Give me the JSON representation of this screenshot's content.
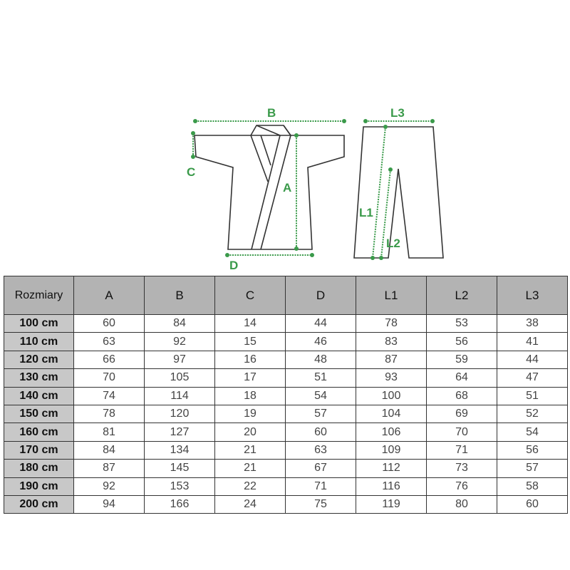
{
  "diagram": {
    "accent_color": "#3a9a4a",
    "labels": {
      "A": "A",
      "B": "B",
      "C": "C",
      "D": "D",
      "L1": "L1",
      "L2": "L2",
      "L3": "L3"
    }
  },
  "table": {
    "headers": [
      "Rozmiary",
      "A",
      "B",
      "C",
      "D",
      "L1",
      "L2",
      "L3"
    ],
    "rows": [
      [
        "100 cm",
        "60",
        "84",
        "14",
        "44",
        "78",
        "53",
        "38"
      ],
      [
        "110 cm",
        "63",
        "92",
        "15",
        "46",
        "83",
        "56",
        "41"
      ],
      [
        "120 cm",
        "66",
        "97",
        "16",
        "48",
        "87",
        "59",
        "44"
      ],
      [
        "130 cm",
        "70",
        "105",
        "17",
        "51",
        "93",
        "64",
        "47"
      ],
      [
        "140 cm",
        "74",
        "114",
        "18",
        "54",
        "100",
        "68",
        "51"
      ],
      [
        "150 cm",
        "78",
        "120",
        "19",
        "57",
        "104",
        "69",
        "52"
      ],
      [
        "160 cm",
        "81",
        "127",
        "20",
        "60",
        "106",
        "70",
        "54"
      ],
      [
        "170 cm",
        "84",
        "134",
        "21",
        "63",
        "109",
        "71",
        "56"
      ],
      [
        "180 cm",
        "87",
        "145",
        "21",
        "67",
        "112",
        "73",
        "57"
      ],
      [
        "190 cm",
        "92",
        "153",
        "22",
        "71",
        "116",
        "76",
        "58"
      ],
      [
        "200 cm",
        "94",
        "166",
        "24",
        "75",
        "119",
        "80",
        "60"
      ]
    ]
  }
}
